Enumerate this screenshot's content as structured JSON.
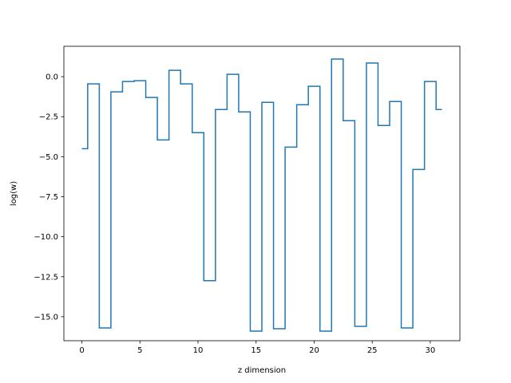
{
  "chart_data": {
    "type": "line",
    "drawstyle": "steps-mid",
    "title": "",
    "xlabel": "z dimension",
    "ylabel": "log(w)",
    "xlim": [
      -1.55,
      32.55
    ],
    "ylim": [
      -16.5,
      1.9
    ],
    "xticks": [
      0,
      5,
      10,
      15,
      20,
      25,
      30
    ],
    "yticks": [
      0.0,
      -2.5,
      -5.0,
      -7.5,
      -10.0,
      -12.5,
      -15.0
    ],
    "xtick_labels": [
      "0",
      "5",
      "10",
      "15",
      "20",
      "25",
      "30"
    ],
    "ytick_labels": [
      "0.0",
      "−2.5",
      "−5.0",
      "−7.5",
      "−10.0",
      "−12.5",
      "−15.0"
    ],
    "grid": false,
    "series_color": "#1f77b4",
    "series": [
      {
        "x": [
          0,
          1,
          2,
          3,
          4,
          5,
          6,
          7,
          8,
          9,
          10,
          11,
          12,
          13,
          14,
          15,
          16,
          17,
          18,
          19,
          20,
          21,
          22,
          23,
          24,
          25,
          26,
          27,
          28,
          29,
          30,
          31
        ],
        "values": [
          -4.5,
          -0.45,
          -15.7,
          -0.95,
          -0.3,
          -0.25,
          -1.3,
          -3.95,
          0.4,
          -0.45,
          -3.5,
          -12.75,
          -2.05,
          0.15,
          -2.2,
          -15.9,
          -1.6,
          -15.75,
          -4.4,
          -1.75,
          -0.6,
          -15.9,
          1.1,
          -2.75,
          -15.6,
          0.85,
          -3.05,
          -1.55,
          -15.7,
          -5.8,
          -0.3,
          -2.05
        ]
      }
    ]
  }
}
